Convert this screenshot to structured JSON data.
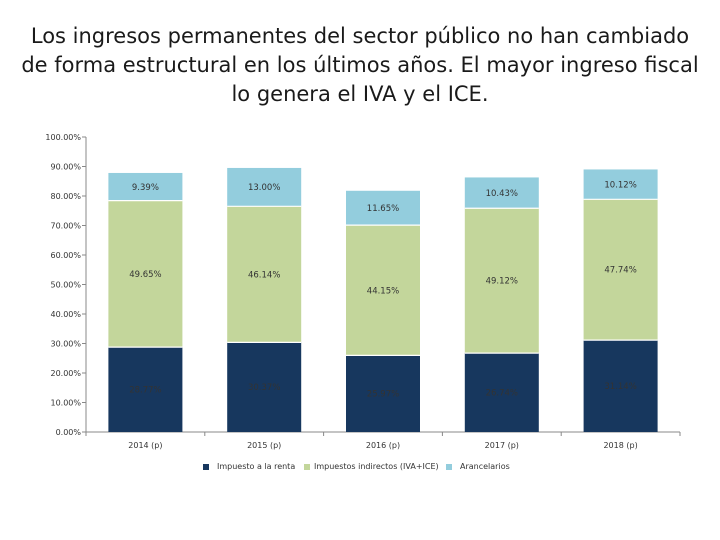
{
  "title_lines": [
    "Los ingresos permanentes del sector público no han cambiado",
    "de forma estructural en los últimos años. El mayor ingreso fiscal",
    "lo genera el IVA y el ICE."
  ],
  "chart_data": {
    "type": "bar",
    "stacked": true,
    "title": "Los ingresos permanentes del sector público no han cambiado de forma estructural en los últimos años. El mayor ingreso fiscal lo genera el IVA y el ICE.",
    "categories": [
      "2014 (p)",
      "2015 (p)",
      "2016 (p)",
      "2017 (p)",
      "2018 (p)"
    ],
    "series": [
      {
        "name": "Impuesto a la renta",
        "color": "#17375e",
        "values": [
          28.77,
          30.37,
          25.97,
          26.74,
          31.14
        ],
        "labels": [
          "28.77%",
          "30.37%",
          "25.97%",
          "26.74%",
          "31.14%"
        ]
      },
      {
        "name": "Impuestos indirectos (IVA+ICE)",
        "color": "#c3d69b",
        "values": [
          49.65,
          46.14,
          44.15,
          49.12,
          47.74
        ],
        "labels": [
          "49.65%",
          "46.14%",
          "44.15%",
          "49.12%",
          "47.74%"
        ]
      },
      {
        "name": "Arancelarios",
        "color": "#93cddd",
        "values": [
          9.39,
          13.0,
          11.65,
          10.43,
          10.12
        ],
        "labels": [
          "9.39%",
          "13.00%",
          "11.65%",
          "10.43%",
          "10.12%"
        ]
      }
    ],
    "ylim": [
      0,
      100
    ],
    "yticks": [
      0,
      10,
      20,
      30,
      40,
      50,
      60,
      70,
      80,
      90,
      100
    ],
    "ytick_labels": [
      "0.00%",
      "10.00%",
      "20.00%",
      "30.00%",
      "40.00%",
      "50.00%",
      "60.00%",
      "70.00%",
      "80.00%",
      "90.00%",
      "100.00%"
    ],
    "grid": false,
    "legend": "bottom"
  }
}
